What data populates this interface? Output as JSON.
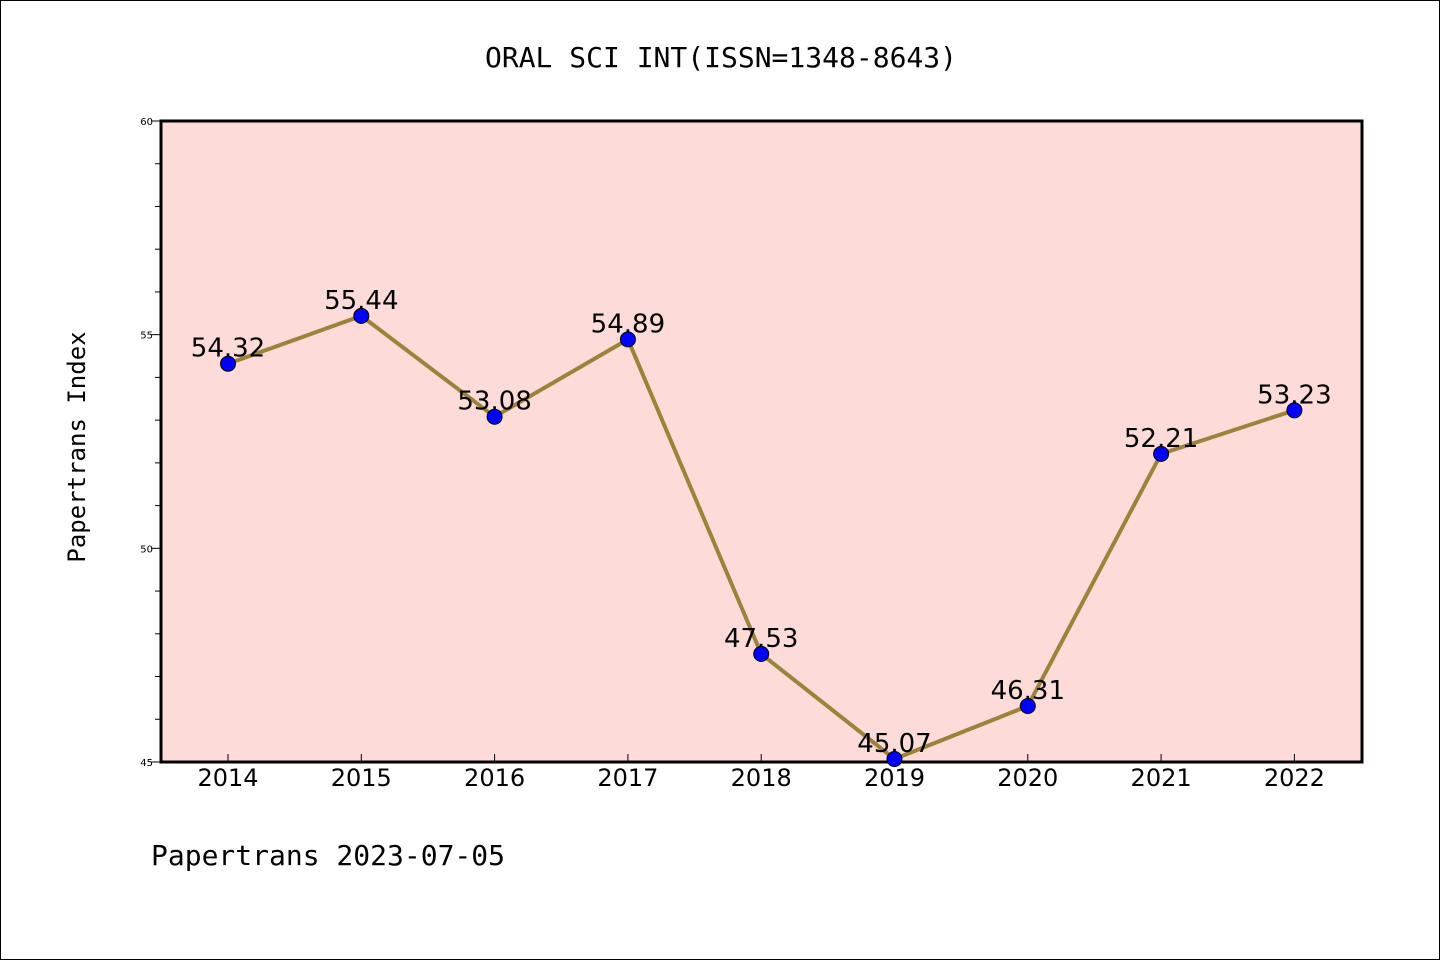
{
  "chart_data": {
    "type": "line",
    "title": "ORAL SCI INT(ISSN=1348-8643)",
    "ylabel": "Papertrans Index",
    "xlabel": "",
    "footer": "Papertrans 2023-07-05",
    "categories": [
      "2014",
      "2015",
      "2016",
      "2017",
      "2018",
      "2019",
      "2020",
      "2021",
      "2022"
    ],
    "values": [
      54.32,
      55.44,
      53.08,
      54.89,
      47.53,
      45.07,
      46.31,
      52.21,
      53.23
    ],
    "value_labels": [
      "54.32",
      "55.44",
      "53.08",
      "54.89",
      "47.53",
      "45.07",
      "46.31",
      "52.21",
      "53.23"
    ],
    "ylim": [
      45,
      60
    ],
    "yticks": [
      45,
      50,
      55,
      60
    ],
    "ytick_labels": [
      "45",
      "50",
      "55",
      "60"
    ],
    "grid": false,
    "legend": "none",
    "colors": {
      "plot_background": "#fddbd8",
      "line": "#9c8339",
      "marker": "#0000ff"
    }
  }
}
